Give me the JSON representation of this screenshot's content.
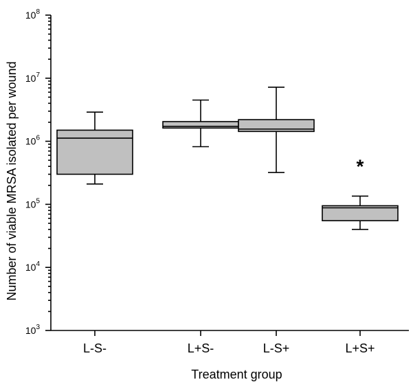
{
  "chart_data": {
    "type": "box",
    "xlabel": "Treatment group",
    "ylabel": "Number of viable MRSA isolated per wound",
    "yscale": "log",
    "ylim": [
      1000,
      100000000
    ],
    "yticks": [
      "10^3",
      "10^4",
      "10^5",
      "10^6",
      "10^7",
      "10^8"
    ],
    "categories": [
      "L-S-",
      "L+S-",
      "L-S+",
      "L+S+"
    ],
    "box_fill": "#c0c0c0",
    "boxes": [
      {
        "category": "L-S-",
        "whisker_low": 210000,
        "q1": 300000,
        "median": 1120000,
        "q3": 1500000,
        "whisker_high": 2900000
      },
      {
        "category": "L+S-",
        "whisker_low": 820000,
        "q1": 1620000,
        "median": 1720000,
        "q3": 2050000,
        "whisker_high": 4500000
      },
      {
        "category": "L-S+",
        "whisker_low": 320000,
        "q1": 1430000,
        "median": 1560000,
        "q3": 2200000,
        "whisker_high": 7200000
      },
      {
        "category": "L+S+",
        "whisker_low": 40000,
        "q1": 55000,
        "median": 88000,
        "q3": 95000,
        "whisker_high": 135000
      }
    ],
    "annotations": [
      {
        "category": "L+S+",
        "text": "*"
      }
    ]
  }
}
